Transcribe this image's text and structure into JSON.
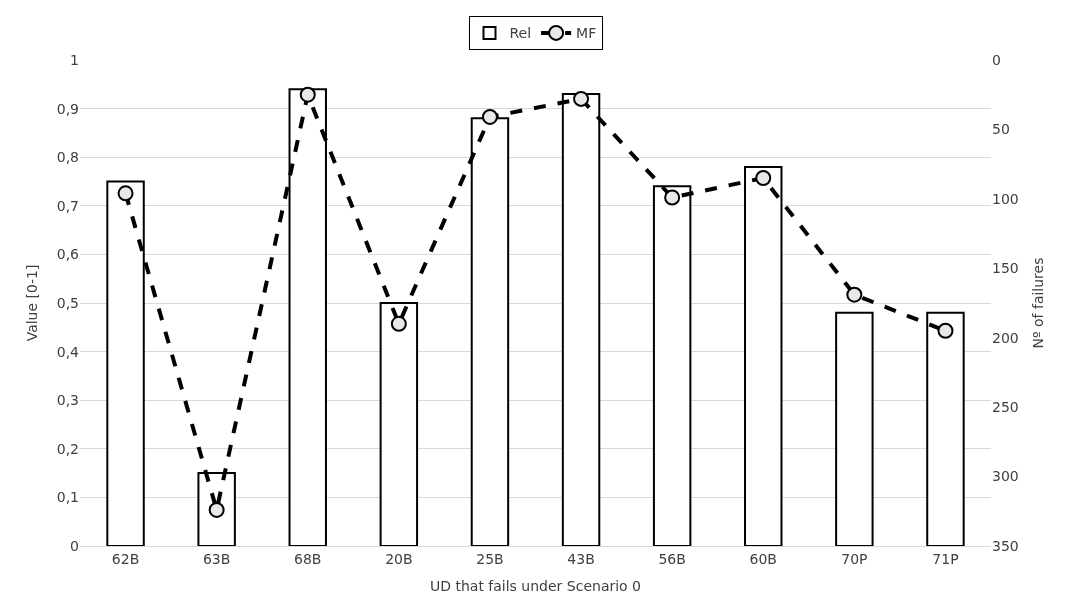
{
  "chart_data": {
    "type": "bar",
    "xlabel": "UD that fails under Scenario 0",
    "ylabel": "Value [0-1]",
    "y2label": "Nº of failures",
    "categories": [
      "62B",
      "63B",
      "68B",
      "20B",
      "25B",
      "43B",
      "56B",
      "60B",
      "70P",
      "71P"
    ],
    "series": [
      {
        "name": "Rel",
        "color": "#ffffff",
        "values": [
          0.75,
          0.15,
          0.94,
          0.5,
          0.88,
          0.93,
          0.74,
          0.78,
          0.48,
          0.48
        ]
      },
      {
        "name": "MF",
        "type": "line",
        "axis": "y2",
        "color": "#000000",
        "marker": "circle",
        "line_style": "dashed",
        "values": [
          96,
          324,
          25,
          190,
          41,
          28,
          99,
          85,
          169,
          195
        ]
      }
    ],
    "ylim": [
      0,
      1
    ],
    "yticks": [
      {
        "value": 0,
        "label": "0"
      },
      {
        "value": 0.1,
        "label": "0,1"
      },
      {
        "value": 0.2,
        "label": "0,2"
      },
      {
        "value": 0.3,
        "label": "0,3"
      },
      {
        "value": 0.4,
        "label": "0,4"
      },
      {
        "value": 0.5,
        "label": "0,5"
      },
      {
        "value": 0.6,
        "label": "0,6"
      },
      {
        "value": 0.7,
        "label": "0,7"
      },
      {
        "value": 0.8,
        "label": "0,8"
      },
      {
        "value": 0.9,
        "label": "0,9"
      },
      {
        "value": 1,
        "label": "1"
      }
    ],
    "y2lim": [
      350,
      0
    ],
    "y2ticks": [
      0,
      50,
      100,
      150,
      200,
      250,
      300,
      350
    ],
    "grid": "y",
    "legend": "top"
  }
}
